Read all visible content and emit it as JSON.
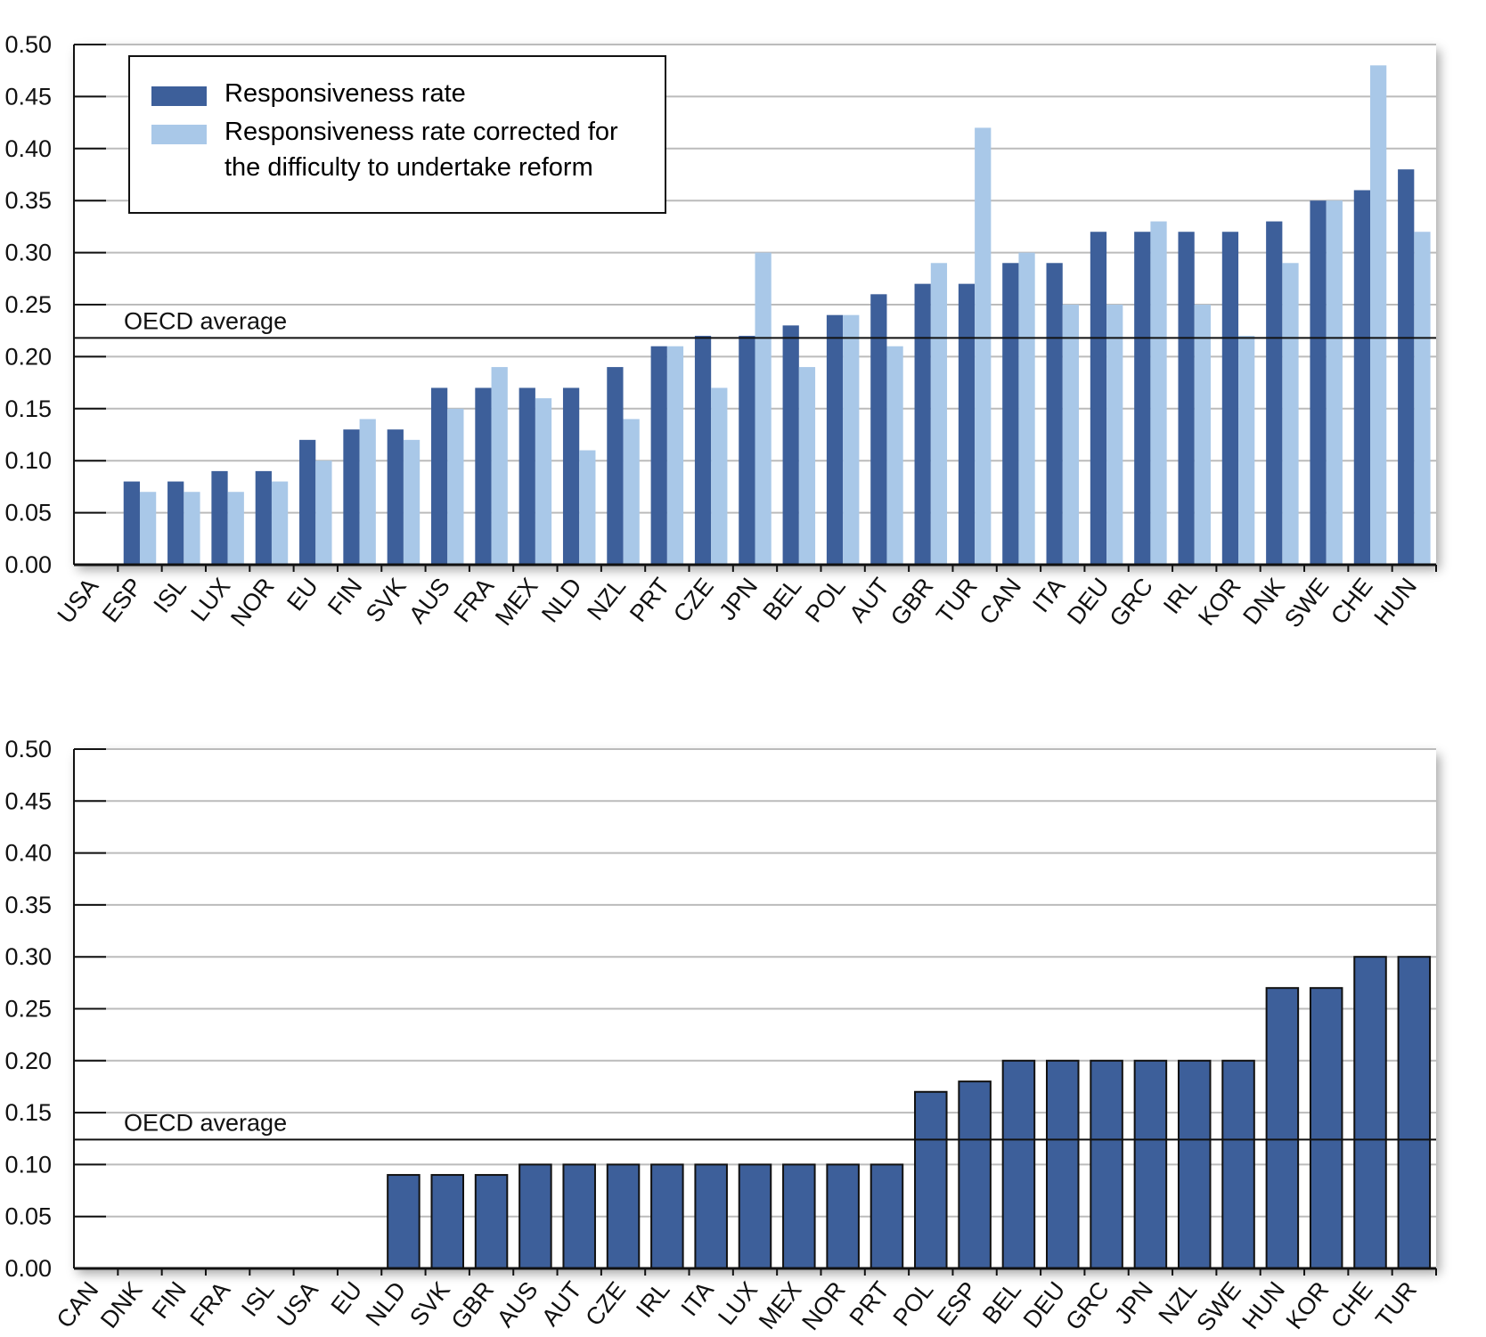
{
  "chart_data": [
    {
      "type": "bar",
      "categories": [
        "USA",
        "ESP",
        "ISL",
        "LUX",
        "NOR",
        "EU",
        "FIN",
        "SVK",
        "AUS",
        "FRA",
        "MEX",
        "NLD",
        "NZL",
        "PRT",
        "CZE",
        "JPN",
        "BEL",
        "POL",
        "AUT",
        "GBR",
        "TUR",
        "CAN",
        "ITA",
        "DEU",
        "GRC",
        "IRL",
        "KOR",
        "DNK",
        "SWE",
        "CHE",
        "HUN"
      ],
      "series": [
        {
          "name": "Responsiveness rate",
          "color": "#3d5f9a",
          "values": [
            null,
            0.08,
            0.08,
            0.09,
            0.09,
            0.12,
            0.13,
            0.13,
            0.17,
            0.17,
            0.17,
            0.17,
            0.19,
            0.21,
            0.22,
            0.22,
            0.23,
            0.24,
            0.26,
            0.27,
            0.27,
            0.29,
            0.29,
            0.32,
            0.32,
            0.32,
            0.32,
            0.33,
            0.35,
            0.36,
            0.38
          ]
        },
        {
          "name": "Responsiveness rate corrected for the difficulty to undertake reform",
          "color": "#a9c8e8",
          "values": [
            null,
            0.07,
            0.07,
            0.07,
            0.08,
            0.1,
            0.14,
            0.12,
            0.15,
            0.19,
            0.16,
            0.11,
            0.14,
            0.21,
            0.17,
            0.3,
            0.19,
            0.24,
            0.21,
            0.29,
            0.42,
            0.3,
            0.25,
            0.25,
            0.33,
            0.25,
            0.22,
            0.29,
            0.35,
            0.48,
            0.32
          ]
        }
      ],
      "reference_line": {
        "label": "OECD average",
        "value": 0.218
      },
      "ylim": [
        0,
        0.5
      ],
      "yticks": [
        {
          "value": 0,
          "label": "0.00"
        },
        0.05,
        {
          "value": 0.1,
          "label": "0.10"
        },
        0.15,
        {
          "value": 0.2,
          "label": "0.20"
        },
        0.25,
        {
          "value": 0.3,
          "label": "0.30"
        },
        0.35,
        {
          "value": 0.4,
          "label": "0.40"
        },
        0.45,
        {
          "value": 0.5,
          "label": "0.50"
        }
      ],
      "grid": true
    },
    {
      "type": "bar",
      "categories": [
        "CAN",
        "DNK",
        "FIN",
        "FRA",
        "ISL",
        "USA",
        "EU",
        "NLD",
        "SVK",
        "GBR",
        "AUS",
        "AUT",
        "CZE",
        "IRL",
        "ITA",
        "LUX",
        "MEX",
        "NOR",
        "PRT",
        "POL",
        "ESP",
        "BEL",
        "DEU",
        "GRC",
        "JPN",
        "NZL",
        "SWE",
        "HUN",
        "KOR",
        "CHE",
        "TUR"
      ],
      "values": [
        0,
        0,
        0,
        0,
        0,
        0,
        0,
        0.09,
        0.09,
        0.09,
        0.1,
        0.1,
        0.1,
        0.1,
        0.1,
        0.1,
        0.1,
        0.1,
        0.1,
        0.17,
        0.18,
        0.2,
        0.2,
        0.2,
        0.2,
        0.2,
        0.2,
        0.27,
        0.27,
        0.3,
        0.3
      ],
      "color": "#3d5f9a",
      "reference_line": {
        "label": "OECD average",
        "value": 0.124
      },
      "ylim": [
        0,
        0.5
      ],
      "yticks": [
        {
          "value": 0,
          "label": "0.00"
        },
        0.05,
        {
          "value": 0.1,
          "label": "0.10"
        },
        0.15,
        {
          "value": 0.2,
          "label": "0.20"
        },
        0.25,
        {
          "value": 0.3,
          "label": "0.30"
        },
        0.35,
        {
          "value": 0.4,
          "label": "0.40"
        },
        0.45,
        {
          "value": 0.5,
          "label": "0.50"
        }
      ],
      "grid": true
    }
  ]
}
